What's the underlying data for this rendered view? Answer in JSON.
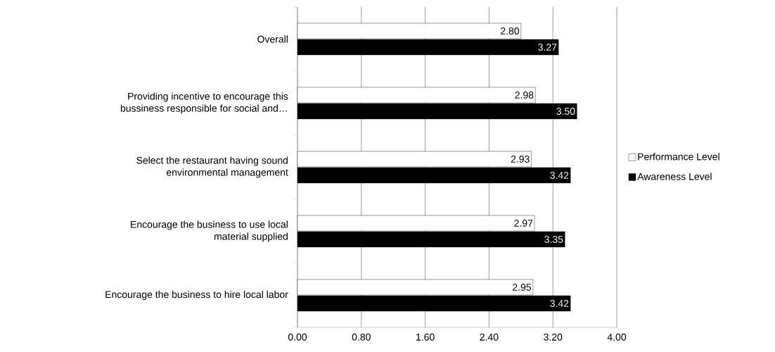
{
  "chart_data": {
    "type": "bar",
    "orientation": "horizontal",
    "categories": [
      "Overall",
      "Providing incentive to encourage this bussiness responsible for social and…",
      "Select the restaurant having sound environmental management",
      "Encourage the business to use local material supplied",
      "Encourage the business to hire local labor"
    ],
    "series": [
      {
        "name": "Performance Level",
        "color": "#ffffff",
        "values": [
          2.8,
          2.98,
          2.93,
          2.97,
          2.95
        ],
        "value_labels": [
          "2.80",
          "2.98",
          "2.93",
          "2.97",
          "2.95"
        ]
      },
      {
        "name": "Awareness Level",
        "color": "#000000",
        "values": [
          3.27,
          3.5,
          3.42,
          3.35,
          3.42
        ],
        "value_labels": [
          "3.27",
          "3.50",
          "3.42",
          "3.35",
          "3.42"
        ]
      }
    ],
    "xlim": [
      0,
      4
    ],
    "xticks": [
      {
        "value": 0,
        "label": "0.00"
      },
      {
        "value": 0.8,
        "label": "0.80"
      },
      {
        "value": 1.6,
        "label": "1.60"
      },
      {
        "value": 2.4,
        "label": "2.40"
      },
      {
        "value": 3.2,
        "label": "3.20"
      },
      {
        "value": 4,
        "label": "4.00"
      }
    ],
    "grid": "x",
    "legend": "right"
  }
}
